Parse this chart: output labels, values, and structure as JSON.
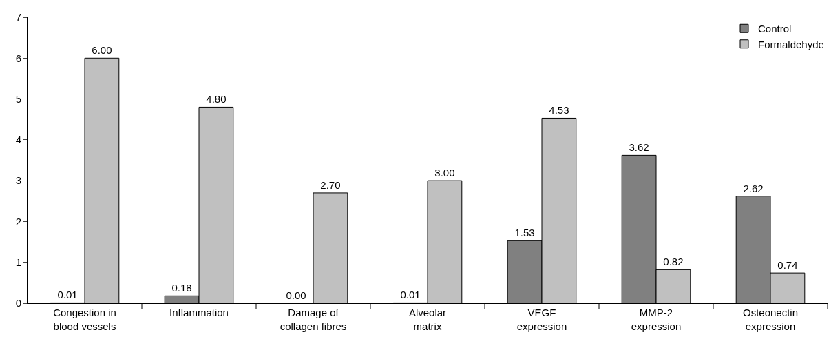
{
  "chart_data": {
    "type": "bar",
    "categories": [
      "Congestion in\nblood vessels",
      "Inflammation",
      "Damage of\ncollagen fibres",
      "Alveolar\nmatrix",
      "VEGF\nexpression",
      "MMP-2\nexpression",
      "Osteonectin\nexpression"
    ],
    "series": [
      {
        "name": "Control",
        "color": "#808080",
        "values": [
          0.01,
          0.18,
          0.0,
          0.01,
          1.53,
          3.62,
          2.62
        ],
        "value_labels": [
          "0.01",
          "0.18",
          "0.00",
          "0.01",
          "1.53",
          "3.62",
          "2.62"
        ]
      },
      {
        "name": "Formaldehyde",
        "color": "#c0c0c0",
        "values": [
          6.0,
          4.8,
          2.7,
          3.0,
          4.53,
          0.82,
          0.74
        ],
        "value_labels": [
          "6.00",
          "4.80",
          "2.70",
          "3.00",
          "4.53",
          "0.82",
          "0.74"
        ]
      }
    ],
    "ylim": [
      0,
      7
    ],
    "yticks": [
      0,
      1,
      2,
      3,
      4,
      5,
      6,
      7
    ],
    "legend": "top right"
  }
}
